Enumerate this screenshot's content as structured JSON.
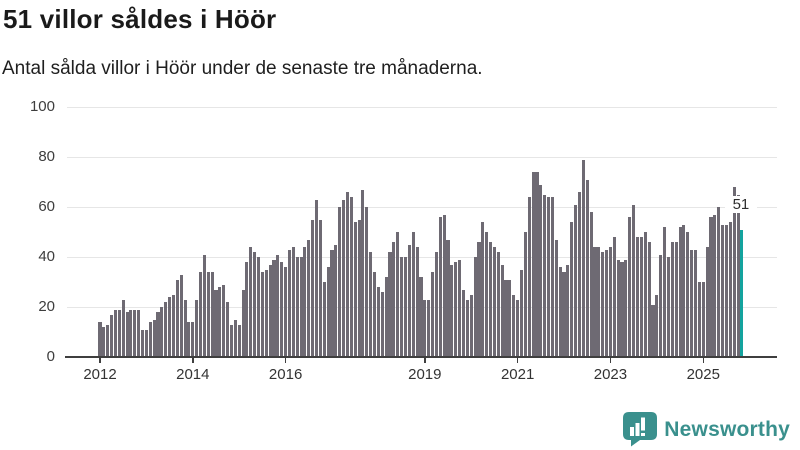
{
  "header": {
    "title": "51 villor såldes i Höör",
    "subtitle": "Antal sålda villor i Höör under de senaste tre månaderna."
  },
  "chart_data": {
    "type": "bar",
    "x_monthly_from": "2012-01",
    "values": [
      14,
      12,
      13,
      17,
      19,
      19,
      23,
      18,
      19,
      19,
      19,
      11,
      11,
      14,
      15,
      18,
      20,
      22,
      24,
      25,
      31,
      33,
      23,
      14,
      14,
      23,
      34,
      41,
      34,
      34,
      27,
      28,
      29,
      22,
      13,
      15,
      13,
      27,
      38,
      44,
      42,
      40,
      34,
      35,
      37,
      39,
      41,
      38,
      36,
      43,
      44,
      40,
      40,
      44,
      47,
      55,
      63,
      55,
      30,
      36,
      43,
      45,
      60,
      63,
      66,
      64,
      54,
      55,
      67,
      60,
      42,
      34,
      28,
      26,
      32,
      42,
      46,
      50,
      40,
      40,
      45,
      50,
      44,
      32,
      23,
      23,
      34,
      42,
      56,
      57,
      47,
      37,
      38,
      39,
      27,
      23,
      25,
      40,
      46,
      54,
      50,
      46,
      44,
      42,
      37,
      31,
      31,
      25,
      23,
      35,
      50,
      64,
      74,
      74,
      69,
      65,
      64,
      64,
      47,
      36,
      34,
      37,
      54,
      61,
      66,
      79,
      71,
      58,
      44,
      44,
      42,
      43,
      44,
      48,
      39,
      38,
      39,
      56,
      61,
      48,
      48,
      50,
      46,
      21,
      25,
      41,
      52,
      40,
      46,
      46,
      52,
      53,
      50,
      43,
      43,
      30,
      30,
      44,
      56,
      57,
      60,
      53,
      53,
      54,
      68,
      65,
      51
    ],
    "highlight_index": 166,
    "highlight_label": "51",
    "ylim": [
      0,
      100
    ],
    "yticks": [
      0,
      20,
      40,
      60,
      80,
      100
    ],
    "xticks": [
      {
        "label": "2012",
        "month_index": 0
      },
      {
        "label": "2014",
        "month_index": 24
      },
      {
        "label": "2016",
        "month_index": 48
      },
      {
        "label": "2019",
        "month_index": 84
      },
      {
        "label": "2021",
        "month_index": 108
      },
      {
        "label": "2023",
        "month_index": 132
      },
      {
        "label": "2025",
        "month_index": 156
      }
    ],
    "grid": true,
    "legend": "none",
    "colors": {
      "bar": "#6e6a73",
      "highlight": "#13a39e",
      "grid": "#e6e6e6",
      "axis": "#3f3f3f"
    }
  },
  "footer": {
    "brand": "Newsworthy",
    "brand_color": "#3a908d"
  }
}
